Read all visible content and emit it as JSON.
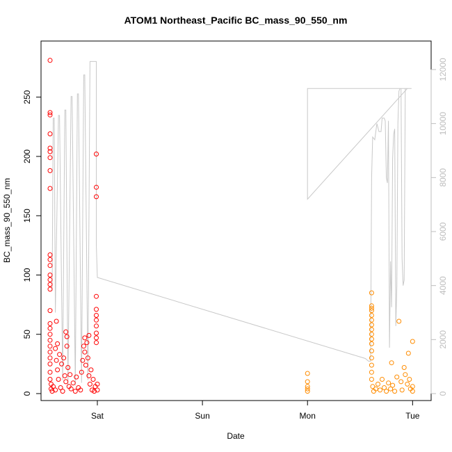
{
  "chart_data": {
    "type": "scatter",
    "title": "ATOM1 Northeast_Pacific BC_mass_90_550_nm",
    "xlabel": "Date",
    "ylabel": "BC_mass_90_550_nm",
    "x_ticks": [
      {
        "label": "Sat",
        "day": 1.0
      },
      {
        "label": "Sun",
        "day": 2.0
      },
      {
        "label": "Mon",
        "day": 3.0
      },
      {
        "label": "Tue",
        "day": 4.0
      }
    ],
    "xlim_days": [
      0.5,
      4.2
    ],
    "ylim": [
      0,
      285
    ],
    "y_ticks": [
      0,
      50,
      100,
      150,
      200,
      250
    ],
    "y2lim": [
      0,
      12600
    ],
    "y2_ticks": [
      0,
      2000,
      4000,
      6000,
      8000,
      10000,
      12000
    ],
    "colors": {
      "series_a": "#ff0000",
      "series_b": "#ff8c00",
      "altitude": "#c8c8c8",
      "axis": "#000000",
      "axis2": "#bdbdbd"
    },
    "series": [
      {
        "color": "#ff0000",
        "points": [
          [
            0.55,
            281
          ],
          [
            0.55,
            237
          ],
          [
            0.55,
            235
          ],
          [
            0.55,
            219
          ],
          [
            0.55,
            207
          ],
          [
            0.55,
            204
          ],
          [
            0.55,
            199
          ],
          [
            0.55,
            188
          ],
          [
            0.55,
            173
          ],
          [
            0.55,
            117
          ],
          [
            0.55,
            113
          ],
          [
            0.55,
            108
          ],
          [
            0.55,
            100
          ],
          [
            0.55,
            96
          ],
          [
            0.55,
            92
          ],
          [
            0.55,
            88
          ],
          [
            0.55,
            70
          ],
          [
            0.55,
            59
          ],
          [
            0.55,
            55
          ],
          [
            0.55,
            50
          ],
          [
            0.55,
            45
          ],
          [
            0.55,
            40
          ],
          [
            0.55,
            35
          ],
          [
            0.55,
            30
          ],
          [
            0.55,
            25
          ],
          [
            0.55,
            18
          ],
          [
            0.55,
            12
          ],
          [
            0.56,
            8
          ],
          [
            0.56,
            4
          ],
          [
            0.57,
            2
          ],
          [
            0.58,
            6
          ],
          [
            0.6,
            3
          ],
          [
            0.6,
            38
          ],
          [
            0.61,
            61
          ],
          [
            0.61,
            28
          ],
          [
            0.62,
            20
          ],
          [
            0.62,
            42
          ],
          [
            0.63,
            12
          ],
          [
            0.64,
            33
          ],
          [
            0.65,
            5
          ],
          [
            0.66,
            25
          ],
          [
            0.67,
            2
          ],
          [
            0.68,
            30
          ],
          [
            0.69,
            15
          ],
          [
            0.7,
            10
          ],
          [
            0.7,
            52
          ],
          [
            0.71,
            48
          ],
          [
            0.71,
            40
          ],
          [
            0.72,
            22
          ],
          [
            0.73,
            6
          ],
          [
            0.74,
            16
          ],
          [
            0.75,
            4
          ],
          [
            0.77,
            9
          ],
          [
            0.79,
            2
          ],
          [
            0.8,
            14
          ],
          [
            0.82,
            5
          ],
          [
            0.84,
            3
          ],
          [
            0.85,
            18
          ],
          [
            0.86,
            28
          ],
          [
            0.87,
            40
          ],
          [
            0.88,
            47
          ],
          [
            0.88,
            35
          ],
          [
            0.89,
            24
          ],
          [
            0.9,
            43
          ],
          [
            0.91,
            30
          ],
          [
            0.92,
            15
          ],
          [
            0.92,
            49
          ],
          [
            0.93,
            8
          ],
          [
            0.94,
            20
          ],
          [
            0.95,
            3
          ],
          [
            0.96,
            12
          ],
          [
            0.97,
            2
          ],
          [
            0.98,
            6
          ],
          [
            0.99,
            202
          ],
          [
            0.99,
            174
          ],
          [
            0.99,
            166
          ],
          [
            0.99,
            82
          ],
          [
            0.99,
            71
          ],
          [
            0.99,
            66
          ],
          [
            0.99,
            62
          ],
          [
            0.99,
            57
          ],
          [
            0.99,
            51
          ],
          [
            0.99,
            47
          ],
          [
            0.99,
            43
          ],
          [
            1.0,
            8
          ],
          [
            1.0,
            3
          ]
        ]
      },
      {
        "color": "#ff8c00",
        "points": [
          [
            3.0,
            17
          ],
          [
            3.0,
            10
          ],
          [
            3.0,
            6
          ],
          [
            3.0,
            4
          ],
          [
            3.0,
            2
          ],
          [
            3.61,
            85
          ],
          [
            3.61,
            74
          ],
          [
            3.61,
            72
          ],
          [
            3.61,
            70
          ],
          [
            3.61,
            66
          ],
          [
            3.61,
            62
          ],
          [
            3.61,
            58
          ],
          [
            3.61,
            54
          ],
          [
            3.61,
            50
          ],
          [
            3.61,
            46
          ],
          [
            3.61,
            42
          ],
          [
            3.61,
            36
          ],
          [
            3.61,
            30
          ],
          [
            3.61,
            24
          ],
          [
            3.61,
            18
          ],
          [
            3.61,
            12
          ],
          [
            3.62,
            6
          ],
          [
            3.63,
            2
          ],
          [
            3.65,
            4
          ],
          [
            3.67,
            8
          ],
          [
            3.69,
            3
          ],
          [
            3.71,
            12
          ],
          [
            3.73,
            5
          ],
          [
            3.75,
            2
          ],
          [
            3.77,
            9
          ],
          [
            3.79,
            4
          ],
          [
            3.8,
            26
          ],
          [
            3.81,
            7
          ],
          [
            3.83,
            2
          ],
          [
            3.85,
            14
          ],
          [
            3.87,
            61
          ],
          [
            3.89,
            10
          ],
          [
            3.9,
            3
          ],
          [
            3.92,
            22
          ],
          [
            3.93,
            16
          ],
          [
            3.95,
            8
          ],
          [
            3.96,
            34
          ],
          [
            3.97,
            12
          ],
          [
            3.98,
            4
          ],
          [
            4.0,
            6
          ],
          [
            4.0,
            44
          ],
          [
            4.0,
            2
          ]
        ]
      }
    ],
    "altitude_line": [
      [
        0.57,
        3800
      ],
      [
        0.58,
        10200
      ],
      [
        0.59,
        10200
      ],
      [
        0.6,
        3000
      ],
      [
        0.63,
        10300
      ],
      [
        0.64,
        10300
      ],
      [
        0.67,
        500
      ],
      [
        0.69,
        10500
      ],
      [
        0.7,
        10500
      ],
      [
        0.72,
        300
      ],
      [
        0.75,
        11000
      ],
      [
        0.76,
        11000
      ],
      [
        0.79,
        300
      ],
      [
        0.81,
        11100
      ],
      [
        0.82,
        11100
      ],
      [
        0.85,
        400
      ],
      [
        0.87,
        11800
      ],
      [
        0.88,
        11800
      ],
      [
        0.91,
        500
      ],
      [
        0.93,
        12300
      ],
      [
        0.95,
        12300
      ],
      [
        0.96,
        12300
      ],
      [
        0.97,
        12300
      ],
      [
        0.98,
        12300
      ],
      [
        0.99,
        12300
      ],
      [
        0.99,
        5500
      ],
      [
        1.0,
        4300
      ],
      [
        3.55,
        1300
      ],
      [
        3.58,
        1200
      ],
      [
        3.6,
        1200
      ],
      [
        3.61,
        8000
      ],
      [
        3.62,
        9500
      ],
      [
        3.64,
        9400
      ],
      [
        3.66,
        10000
      ],
      [
        3.68,
        9700
      ],
      [
        3.7,
        9700
      ],
      [
        3.71,
        10200
      ],
      [
        3.73,
        10200
      ],
      [
        3.74,
        10100
      ],
      [
        3.75,
        8000
      ],
      [
        3.76,
        7800
      ],
      [
        3.77,
        10100
      ],
      [
        3.78,
        1700
      ],
      [
        3.79,
        4900
      ],
      [
        3.8,
        3200
      ],
      [
        3.81,
        8700
      ],
      [
        3.82,
        9600
      ],
      [
        3.83,
        9800
      ],
      [
        3.84,
        2500
      ],
      [
        3.85,
        4000
      ],
      [
        3.86,
        10000
      ],
      [
        3.87,
        11200
      ],
      [
        3.88,
        11300
      ],
      [
        3.89,
        11300
      ],
      [
        3.9,
        5000
      ],
      [
        3.91,
        4000
      ],
      [
        3.92,
        4200
      ],
      [
        3.93,
        11300
      ],
      [
        3.95,
        11300
      ],
      [
        3.0,
        7200
      ],
      [
        3.0,
        11300
      ],
      [
        3.99,
        11300
      ]
    ]
  }
}
